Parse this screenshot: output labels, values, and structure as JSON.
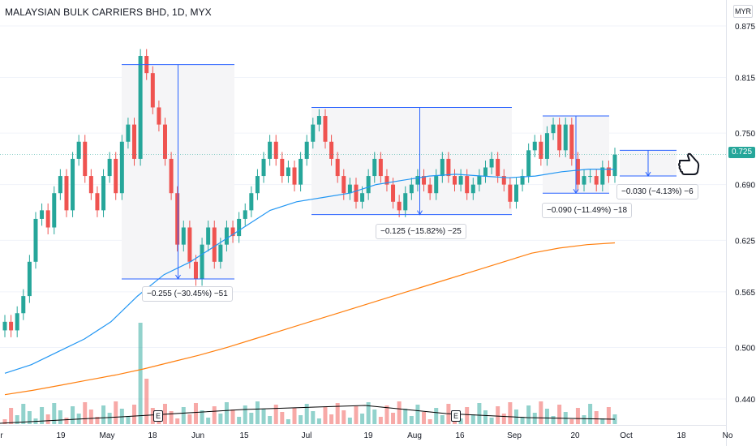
{
  "header": {
    "title": "MALAYSIAN BULK CARRIERS BHD, 1D, MYX",
    "currency": "MYR",
    "current_price": "0.725"
  },
  "markers": {
    "earnings_label": "E"
  },
  "measurements": [
    {
      "label": "−0.255 (−30.45%) −51"
    },
    {
      "label": "−0.125 (−15.82%) −25"
    },
    {
      "label": "−0.090 (−11.49%) −18"
    },
    {
      "label": "−0.030 (−4.13%) −6"
    }
  ],
  "icons": {
    "pointer": "hand-pointer-icon"
  },
  "chart_data": {
    "type": "line",
    "title": "MALAYSIAN BULK CARRIERS BHD, 1D, MYX",
    "ylim": [
      0.415,
      0.885
    ],
    "yticks": [
      "0.875",
      "0.815",
      "0.750",
      "0.690",
      "0.625",
      "0.565",
      "0.500",
      "0.440"
    ],
    "xticks": [
      "r",
      "19",
      "May",
      "18",
      "Jun",
      "15",
      "Jul",
      "19",
      "Aug",
      "16",
      "Sep",
      "20",
      "Oct",
      "18",
      "No"
    ],
    "colors": {
      "up": "#26a69a",
      "down": "#ef5350",
      "ma_short": "#2196f3",
      "ma_long": "#ff7f0e",
      "volume_ma": "#000000",
      "measure": "#2962ff"
    },
    "price_levels": {
      "drop1": {
        "start": 0.83,
        "end": 0.58
      },
      "range2": {
        "start": 0.78,
        "end": 0.655
      },
      "range3": {
        "start": 0.77,
        "end": 0.68
      },
      "range4": {
        "start": 0.73,
        "end": 0.7
      }
    },
    "series": [
      {
        "name": "",
        "values": [
          0.47,
          0.48,
          0.495,
          0.51,
          0.53,
          0.56,
          0.585,
          0.6,
          0.62,
          0.64,
          0.66,
          0.67,
          0.675,
          0.68,
          0.69,
          0.695,
          0.7,
          0.702,
          0.7,
          0.698,
          0.7,
          0.705,
          0.708,
          0.708
        ]
      },
      {
        "name": "",
        "values": [
          0.445,
          0.45,
          0.456,
          0.462,
          0.468,
          0.475,
          0.483,
          0.491,
          0.5,
          0.51,
          0.52,
          0.53,
          0.54,
          0.55,
          0.56,
          0.57,
          0.58,
          0.59,
          0.6,
          0.61,
          0.616,
          0.62,
          0.622
        ]
      }
    ]
  }
}
